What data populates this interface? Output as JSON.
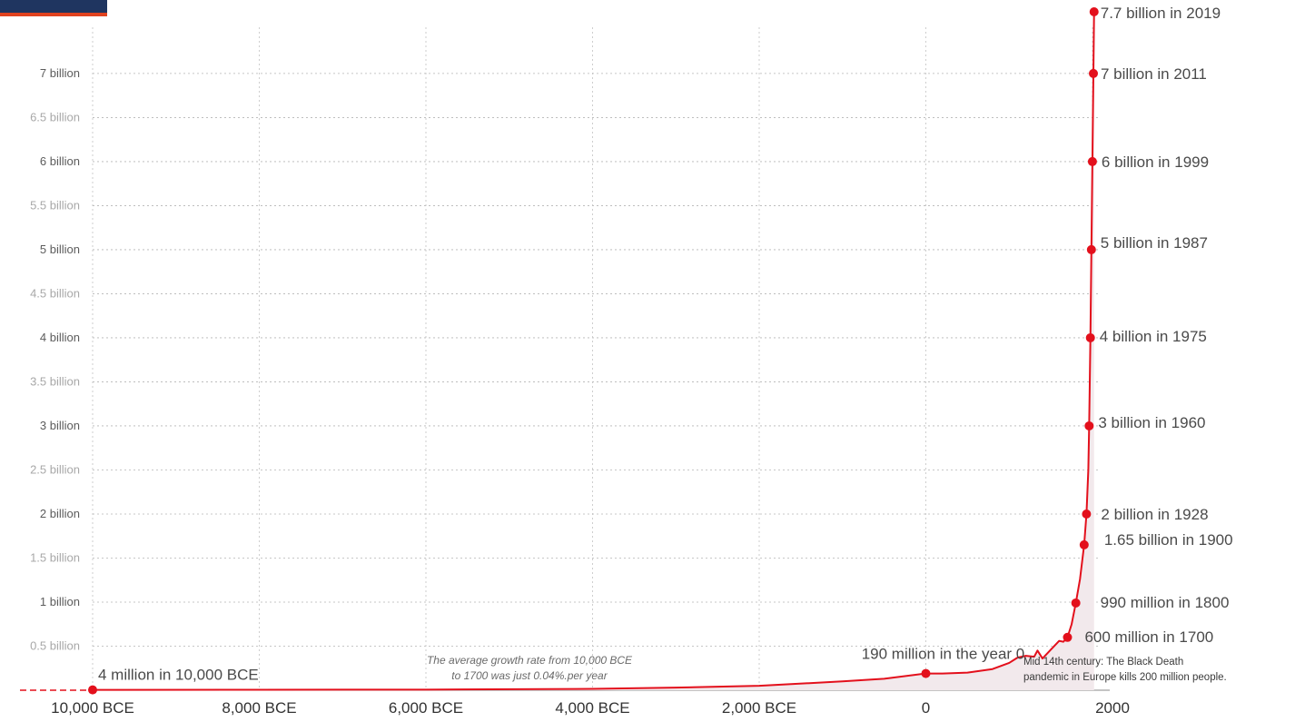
{
  "chart_data": {
    "type": "line",
    "x_ticks": [
      {
        "x": -10000,
        "label": "10,000 BCE"
      },
      {
        "x": -8000,
        "label": "8,000 BCE"
      },
      {
        "x": -6000,
        "label": "6,000 BCE"
      },
      {
        "x": -4000,
        "label": "4,000 BCE"
      },
      {
        "x": -2000,
        "label": "2,000 BCE"
      },
      {
        "x": 0,
        "label": "0"
      },
      {
        "x": 2000,
        "label": "2000"
      }
    ],
    "y_ticks": [
      {
        "y": 0.5,
        "label": "0.5 billion",
        "minor": true
      },
      {
        "y": 1,
        "label": "1 billion",
        "minor": false
      },
      {
        "y": 1.5,
        "label": "1.5 billion",
        "minor": true
      },
      {
        "y": 2,
        "label": "2 billion",
        "minor": false
      },
      {
        "y": 2.5,
        "label": "2.5 billion",
        "minor": true
      },
      {
        "y": 3,
        "label": "3 billion",
        "minor": false
      },
      {
        "y": 3.5,
        "label": "3.5  billion",
        "minor": true
      },
      {
        "y": 4,
        "label": "4 billion",
        "minor": false
      },
      {
        "y": 4.5,
        "label": "4.5 billion",
        "minor": true
      },
      {
        "y": 5,
        "label": "5 billion",
        "minor": false
      },
      {
        "y": 5.5,
        "label": "5.5 billion",
        "minor": true
      },
      {
        "y": 6,
        "label": "6 billion",
        "minor": false
      },
      {
        "y": 6.5,
        "label": "6.5 billion",
        "minor": true
      },
      {
        "y": 7,
        "label": "7 billion",
        "minor": false
      }
    ],
    "xlim": [
      -10000,
      2000
    ],
    "ylim": [
      0,
      7.7
    ],
    "grid": true,
    "series": [
      {
        "color": "#e3101c",
        "x": [
          -10000,
          -8000,
          -6000,
          -4000,
          -3000,
          -2000,
          -1000,
          -500,
          0,
          200,
          500,
          800,
          1000,
          1100,
          1200,
          1300,
          1340,
          1400,
          1500,
          1600,
          1650,
          1700,
          1750,
          1800,
          1850,
          1900,
          1928,
          1950,
          1960,
          1975,
          1987,
          1999,
          2011,
          2019
        ],
        "y": [
          0.004,
          0.005,
          0.007,
          0.015,
          0.03,
          0.05,
          0.1,
          0.13,
          0.19,
          0.19,
          0.2,
          0.24,
          0.31,
          0.37,
          0.39,
          0.38,
          0.45,
          0.36,
          0.46,
          0.56,
          0.55,
          0.6,
          0.75,
          0.99,
          1.26,
          1.65,
          2.0,
          2.5,
          3.0,
          4.0,
          5.0,
          6.0,
          7.0,
          7.7
        ]
      }
    ],
    "highlighted_points": [
      {
        "x": -10000,
        "y": 0.004,
        "label": "4 million in 10,000 BCE"
      },
      {
        "x": 0,
        "y": 0.19,
        "label": "190 million in the year 0"
      },
      {
        "x": 1700,
        "y": 0.6,
        "label": "600 million in 1700"
      },
      {
        "x": 1800,
        "y": 0.99,
        "label": "990 million in 1800"
      },
      {
        "x": 1900,
        "y": 1.65,
        "label": "1.65 billion in 1900"
      },
      {
        "x": 1928,
        "y": 2.0,
        "label": "2 billion in 1928"
      },
      {
        "x": 1960,
        "y": 3.0,
        "label": "3 billion in 1960"
      },
      {
        "x": 1975,
        "y": 4.0,
        "label": "4 billion in 1975"
      },
      {
        "x": 1987,
        "y": 5.0,
        "label": "5 billion in 1987"
      },
      {
        "x": 1999,
        "y": 6.0,
        "label": "6 billion in 1999"
      },
      {
        "x": 2011,
        "y": 7.0,
        "label": "7 billion in 2011"
      },
      {
        "x": 2019,
        "y": 7.7,
        "label": "7.7 billion in 2019"
      }
    ],
    "annotations": {
      "growth_note_line1": "The average growth rate from 10,000 BCE",
      "growth_note_line2": "to 1700 was just  0.04%.per year",
      "black_death_line1": "Mid 14th century: The Black Death",
      "black_death_line2": "pandemic in Europe kills 200 million people."
    }
  }
}
